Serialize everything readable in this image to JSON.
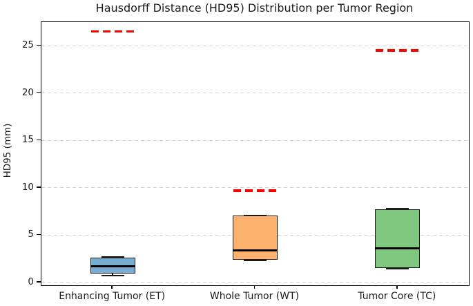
{
  "chart_data": {
    "type": "box",
    "title": "Hausdorff Distance (HD95) Distribution per Tumor Region",
    "xlabel": "",
    "ylabel": "HD95 (mm)",
    "categories": [
      "Enhancing Tumor (ET)",
      "Whole Tumor (WT)",
      "Tumor Core (TC)"
    ],
    "ylim": [
      -0.3,
      27.5
    ],
    "yticks": [
      0,
      5,
      10,
      15,
      20,
      25
    ],
    "grid": "horizontal-dashed",
    "legend_position": "none",
    "boxes": [
      {
        "category": "Enhancing Tumor (ET)",
        "code": "et",
        "whisker_low": 0.7,
        "q1": 0.95,
        "median": 1.7,
        "q3": 2.6,
        "whisker_high": 2.7,
        "mean_dashed_marker": 26.5,
        "fill_color": "#78add2"
      },
      {
        "category": "Whole Tumor (WT)",
        "code": "wt",
        "whisker_low": 2.35,
        "q1": 2.4,
        "median": 3.4,
        "q3": 7.05,
        "whisker_high": 7.1,
        "mean_dashed_marker": 9.7,
        "fill_color": "#ffb26e"
      },
      {
        "category": "Tumor Core (TC)",
        "code": "tc",
        "whisker_low": 1.45,
        "q1": 1.5,
        "median": 3.6,
        "q3": 7.75,
        "whisker_high": 7.8,
        "mean_dashed_marker": 24.5,
        "fill_color": "#80c880"
      }
    ],
    "colors": {
      "median_line": "#000000",
      "mean_dashed_line": "#ff0000",
      "box_edge": "#1a1a1a",
      "grid_line": "#d2d2d2",
      "axis": "#000000",
      "background": "#ffffff"
    }
  }
}
